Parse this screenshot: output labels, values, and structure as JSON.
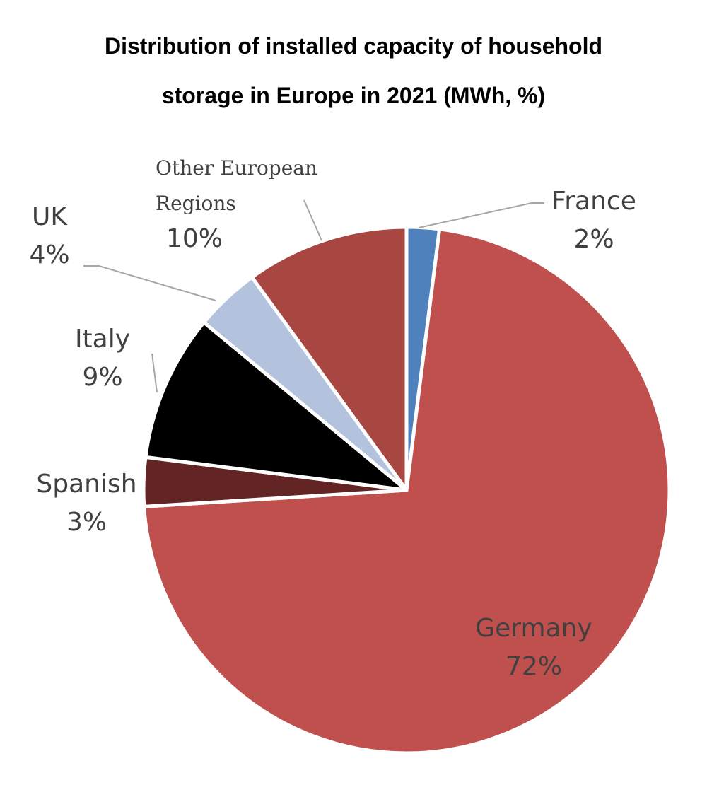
{
  "chart_data": {
    "type": "pie",
    "title": "Distribution of installed capacity of household storage in Europe in 2021 (MWh, %)",
    "categories": [
      "France",
      "Germany",
      "Spanish",
      "Italy",
      "UK",
      "Other European Regions"
    ],
    "values": [
      2,
      72,
      3,
      9,
      4,
      10
    ],
    "value_labels": [
      "2%",
      "72%",
      "3%",
      "9%",
      "4%",
      "10%"
    ],
    "colors": [
      "#4f81bd",
      "#c0504d",
      "#632523",
      "#000000",
      "#b3c3de",
      "#a84642"
    ]
  }
}
